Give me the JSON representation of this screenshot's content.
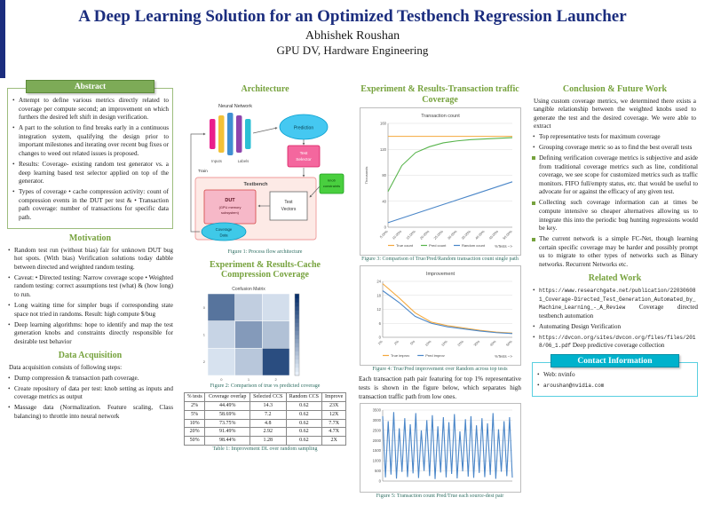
{
  "colors": {
    "accent_green": "#76a23d",
    "title_navy": "#1b2d7e",
    "contact_cyan": "#00b2cc"
  },
  "header": {
    "title": "A Deep Learning Solution for an Optimized Testbench Regression Launcher",
    "author": "Abhishek Roushan",
    "affiliation": "GPU DV, Hardware Engineering"
  },
  "abstract": {
    "title": "Abstract",
    "bullets": [
      "Attempt to define various metrics directly related to coverage per compute second; an improvement on which furthers the desired left shift in design verification.",
      "A part to the solution to find breaks early in a continuous integration system, qualifying the design prior to important milestones and iterating over recent bug fixes or changes to weed out related issues is proposed.",
      "Results: Coverage- existing random test generator vs. a deep learning based test selector applied on top of the generator.",
      "Types of coverage • cache compression activity: count of compression events in the DUT per test & • Transaction path coverage: number of transactions for specific data path."
    ]
  },
  "motivation": {
    "title": "Motivation",
    "bullets": [
      "Random test run (without bias) fair for unknown DUT bug hot spots. (With bias) Verification solutions today dabble between directed and weighted random testing.",
      "Caveat: • Directed testing: Narrow coverage scope • Weighted random testing: correct assumptions test (what) & (how long) to run.",
      "Long waiting time for simpler bugs if corresponding state space not tried in randoms. Result: high compute $/bug",
      "Deep learning algorithms: hope to identify and map the test generation knobs and constraints directly responsible for desirable test behavior"
    ]
  },
  "data_acquisition": {
    "title": "Data Acquisition",
    "intro": "Data acquisition consists of following steps:",
    "bullets": [
      "Dump compression & transaction path coverage.",
      "Create repository of data per test: knob setting as inputs and coverage metrics as output",
      "Massage data (Normalization. Feature scaling, Class balancing) to throttle into neural network"
    ]
  },
  "architecture": {
    "title": "Architecture",
    "caption": "Figure 1: Process flow architecture",
    "labels": {
      "neural_network": "Neural Network",
      "prediction": "Prediction",
      "inputs": "Inputs",
      "labels": "Labels",
      "train": "Train",
      "ts_line1": "Test",
      "ts_line2": "Selector",
      "knob_line1": "knob",
      "knob_line2": "constraints",
      "testbench": "Testbench",
      "dut_line1": "DUT",
      "dut_line2": "(GPU memory",
      "dut_line3": "subsystem)",
      "tv_line1": "Test",
      "tv_line2": "Vectors",
      "cov_line1": "Coverage",
      "cov_line2": "Data"
    }
  },
  "cache_results": {
    "title": "Experiment & Results-Cache Compression Coverage",
    "figure_caption": "Figure 2: Comparison of true vs predicted coverage",
    "table": {
      "headers": [
        "% tests",
        "Coverage overlap",
        "Selected CCS",
        "Random CCS",
        "Improve"
      ],
      "rows": [
        [
          "2%",
          "44.49%",
          "14.3",
          "0.62",
          "23X"
        ],
        [
          "5%",
          "58.69%",
          "7.2",
          "0.62",
          "12X"
        ],
        [
          "10%",
          "73.75%",
          "4.8",
          "0.62",
          "7.7X"
        ],
        [
          "20%",
          "91.49%",
          "2.92",
          "0.62",
          "4.7X"
        ],
        [
          "50%",
          "98.44%",
          "1.28",
          "0.62",
          "2X"
        ]
      ],
      "caption": "Table 1: Improvement DL over random sampling"
    }
  },
  "transaction_results": {
    "title": "Experiment & Results-Transaction traffic Coverage",
    "figure3_caption": "Figure 3: Comparison of True/Pred/Random transaction count single path",
    "figure4_caption": "Figure 4: True/Pred improvement over Random across top tests",
    "body": "Each transaction path pair featuring for top 1% representative tests is shown in the figure below, which separates high transaction traffic path from low ones.",
    "figure5_caption": "Figure 5: Transaction count Pred/True each source-dest pair"
  },
  "conclusion": {
    "title": "Conclusion & Future Work",
    "intro": "Using custom coverage metrics, we determined there exists a tangible relationship between the weighted knobs used to generate the test and the desired coverage. We were able to extract",
    "bullets": [
      {
        "text": "Top representative tests for maximum coverage"
      },
      {
        "text": "Grouping coverage metric so as to find the best overall tests"
      },
      {
        "text": "Defining verification coverage metrics is subjective and aside from traditional coverage metrics such as line, conditional coverage, we see scope for customized metrics such as traffic monitors. FIFO full/empty status, etc. that would be useful to advocate for or against the efficacy of any given test.",
        "marker": "square"
      },
      {
        "text": "Collecting such coverage information can at times be compute intensive so cheaper alternatives allowing us to integrate this into the periodic bug hunting regressions would be key.",
        "marker": "square"
      },
      {
        "text": "The current network is a simple FC-Net, though learning certain specific coverage may be harder and possibly prompt us to migrate to other types of networks such as Binary networks. Recurrent Networks etc.",
        "marker": "square"
      }
    ]
  },
  "related_work": {
    "title": "Related Work",
    "bullets": [
      {
        "mono": "https://www.researchgate.net/publication/220306081_Coverage-Directed_Test_Generation_Automated_by_Machine_Learning_-_A_Review",
        "text": " Coverage directed testbench automation"
      },
      {
        "text": "Automating Design Verification"
      },
      {
        "mono": "https://dvcon.org/sites/dvcon.org/files/files/2018/06_1.pdf",
        "text": " Deep predictive coverage collection"
      }
    ]
  },
  "contact": {
    "title": "Contact Information",
    "items": [
      {
        "text": "Web: nvinfo"
      },
      {
        "mono": "aroushan@nvidia.com"
      }
    ]
  },
  "chart_data": [
    {
      "id": "fig3",
      "type": "line",
      "title": "Transaction count",
      "x": [
        "5.00%",
        "10.00%",
        "15.00%",
        "20.00%",
        "25.00%",
        "30.00%",
        "35.00%",
        "40.00%",
        "45.00%",
        "50.00%"
      ],
      "xlabel": "%Tests -->",
      "ylabel": "Thousands",
      "ylim": [
        0,
        160
      ],
      "ydiv": 4,
      "series": [
        {
          "name": "True count",
          "color": "#f4a83c",
          "values": [
            140,
            140,
            140,
            140,
            140,
            140,
            140,
            140,
            140,
            140
          ]
        },
        {
          "name": "Pred count",
          "color": "#58b44c",
          "values": [
            55,
            95,
            115,
            124,
            130,
            133,
            135,
            136,
            137,
            138
          ]
        },
        {
          "name": "Random count",
          "color": "#4a86c8",
          "values": [
            7,
            14,
            21,
            28,
            35,
            42,
            49,
            56,
            63,
            70
          ]
        }
      ]
    },
    {
      "id": "fig4",
      "type": "line",
      "title": "Improvement",
      "x": [
        "1%",
        "2%",
        "5%",
        "10%",
        "15%",
        "20%",
        "30%",
        "40%",
        "50%"
      ],
      "xlabel": "%Tests -->",
      "ylim": [
        0,
        24
      ],
      "ydiv": 4,
      "series": [
        {
          "name": "True improv",
          "color": "#f4a83c",
          "values": [
            23,
            17,
            10.5,
            6.5,
            5,
            4,
            3,
            2.2,
            1.8
          ]
        },
        {
          "name": "Pred improv",
          "color": "#4a86c8",
          "values": [
            20,
            15,
            9,
            6,
            4.5,
            3.6,
            2.7,
            2,
            1.6
          ]
        }
      ]
    },
    {
      "id": "fig5",
      "type": "line",
      "ylim": [
        0,
        3500
      ],
      "ydiv": 7,
      "series": [
        {
          "name": "Transaction count",
          "color": "#4a86c8",
          "values": [
            3200,
            180,
            2950,
            320,
            3400,
            120,
            2600,
            450,
            3100,
            200,
            2800,
            380,
            3350,
            150,
            2500,
            500,
            3000,
            250,
            3250,
            100,
            2700,
            420,
            3150,
            180,
            2900,
            350,
            3300,
            130,
            2450,
            480,
            3050,
            220,
            3200,
            160,
            2750,
            400,
            3100,
            190,
            2850,
            300,
            3350,
            110,
            2550,
            460,
            2950,
            240,
            3150,
            170
          ]
        }
      ]
    },
    {
      "id": "fig2",
      "type": "heatmap",
      "title": "Confusion Matrix",
      "matrix": [
        [
          0.65,
          0.18,
          0.1
        ],
        [
          0.15,
          0.45,
          0.25
        ],
        [
          0.08,
          0.22,
          0.85
        ]
      ]
    }
  ]
}
